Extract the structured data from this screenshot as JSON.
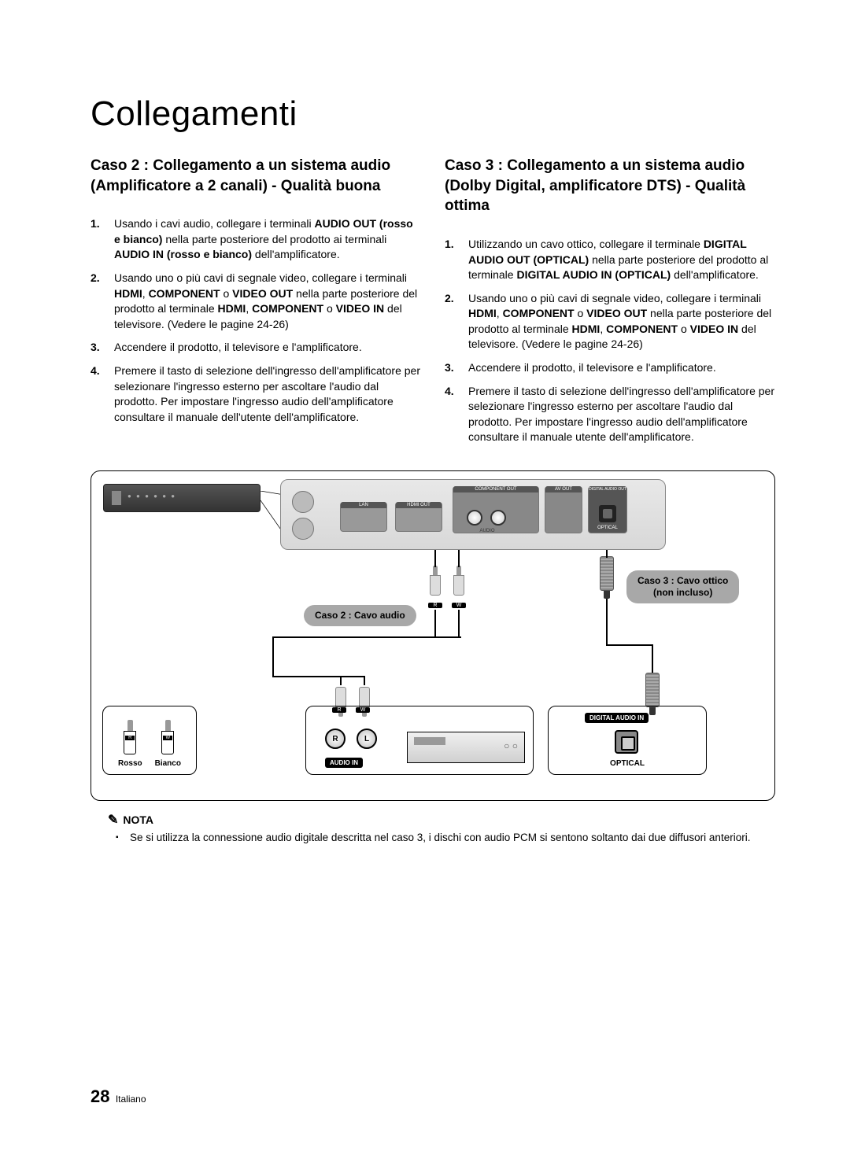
{
  "page": {
    "title": "Collegamenti",
    "number": "28",
    "lang_label": "Italiano"
  },
  "case2": {
    "heading": "Caso 2 : Collegamento a un sistema audio (Amplificatore a 2 canali) - Qualità buona",
    "steps": [
      "Usando i cavi audio, collegare i terminali <b>AUDIO OUT (rosso e bianco)</b> nella parte posteriore del prodotto ai terminali <b>AUDIO IN (rosso e bianco)</b> dell'amplificatore.",
      "Usando uno o più cavi di segnale video, collegare i terminali <b>HDMI</b>, <b>COMPONENT</b> o <b>VIDEO OUT</b> nella parte posteriore del prodotto al terminale <b>HDMI</b>, <b>COMPONENT</b> o <b>VIDEO IN</b> del televisore. (Vedere le pagine 24-26)",
      "Accendere il prodotto, il televisore e l'amplificatore.",
      "Premere il tasto di selezione dell'ingresso dell'amplificatore per selezionare l'ingresso esterno per ascoltare l'audio dal prodotto. Per impostare l'ingresso audio dell'amplificatore consultare il manuale dell'utente dell'amplificatore."
    ]
  },
  "case3": {
    "heading": "Caso 3 : Collegamento a un sistema audio (Dolby Digital, amplificatore DTS) - Qualità ottima",
    "steps": [
      "Utilizzando un cavo ottico, collegare il terminale <b>DIGITAL AUDIO OUT (OPTICAL)</b> nella parte posteriore del prodotto al terminale <b>DIGITAL AUDIO IN (OPTICAL)</b> dell'amplificatore.",
      "Usando uno o più cavi di segnale video, collegare i terminali <b>HDMI</b>, <b>COMPONENT</b> o <b>VIDEO OUT</b> nella parte posteriore del prodotto al terminale <b>HDMI</b>, <b>COMPONENT</b> o <b>VIDEO IN</b> del televisore. (Vedere le pagine 24-26)",
      "Accendere il prodotto, il televisore e l'amplificatore.",
      "Premere il tasto di selezione dell'ingresso dell'amplificatore per selezionare l'ingresso esterno per ascoltare l'audio dal prodotto. Per impostare l'ingresso audio dell'amplificatore consultare il manuale utente dell'amplificatore."
    ]
  },
  "diagram": {
    "panel_labels": {
      "lan": "LAN",
      "hdmi": "HDMI OUT",
      "component": "COMPONENT OUT",
      "audio": "AUDIO",
      "av": "AV OUT",
      "digital_audio": "DIGITAL AUDIO OUT",
      "optical": "OPTICAL"
    },
    "pill_case2": "Caso 2 : Cavo audio",
    "pill_case3_line1": "Caso 3 : Cavo ottico",
    "pill_case3_line2": "(non incluso)",
    "legend_red": "Rosso",
    "legend_white": "Bianco",
    "tag_r": "R",
    "tag_w": "W",
    "amp_audio_in": "AUDIO IN",
    "amp_digital_in": "DIGITAL AUDIO IN",
    "amp_optical": "OPTICAL",
    "rca_r_sym": "ℝ",
    "rca_l_sym": "𝕃"
  },
  "nota": {
    "label": "NOTA",
    "text": "Se si utilizza la connessione audio digitale descritta nel caso 3, i dischi con audio PCM si sentono soltanto dai due diffusori anteriori."
  },
  "colors": {
    "text": "#000000",
    "bg": "#ffffff",
    "pill_bg": "#a8a8a8",
    "panel_bg": "#d8d8d8"
  }
}
